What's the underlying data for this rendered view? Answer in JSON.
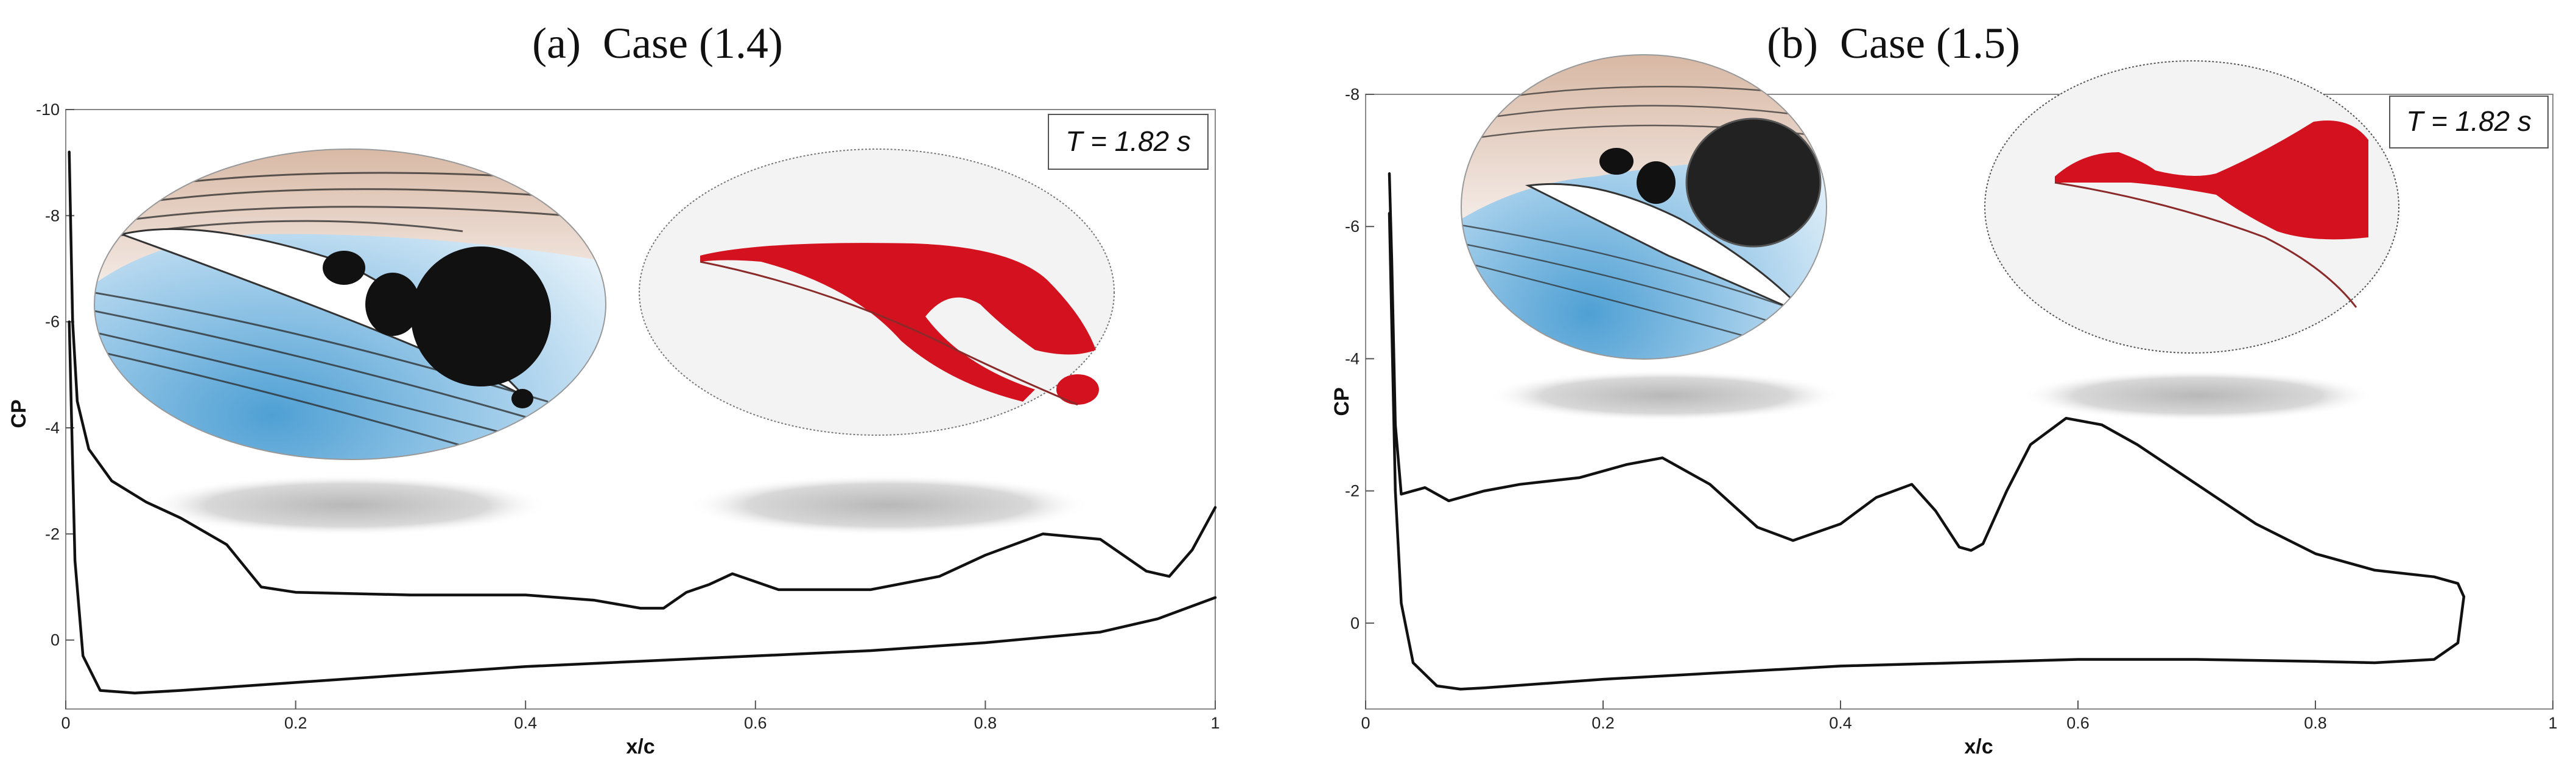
{
  "chart_data": [
    {
      "type": "line",
      "title": "(a)  Case (1.4)",
      "xlabel": "x/c",
      "ylabel": "CP",
      "xlim": [
        0,
        1
      ],
      "ylim": [
        1.3,
        -10
      ],
      "y_inverted": true,
      "xticks": [
        "0",
        "0.2",
        "0.4",
        "0.6",
        "0.8",
        "1"
      ],
      "yticks": [
        "-10",
        "-8",
        "-6",
        "-4",
        "-2",
        "0"
      ],
      "annotation": "T = 1.82 s",
      "series": [
        {
          "x": [
            0.003,
            0.006,
            0.01,
            0.02,
            0.04,
            0.07,
            0.1,
            0.14,
            0.17,
            0.2,
            0.3,
            0.4,
            0.46,
            0.5,
            0.52,
            0.54,
            0.56,
            0.58,
            0.6,
            0.62,
            0.66,
            0.7,
            0.76,
            0.8,
            0.85,
            0.9,
            0.94,
            0.96,
            0.98,
            1.0
          ],
          "y": [
            -9.2,
            -6.0,
            -4.5,
            -3.6,
            -3.0,
            -2.6,
            -2.3,
            -1.8,
            -1.0,
            -0.9,
            -0.85,
            -0.85,
            -0.75,
            -0.6,
            -0.6,
            -0.9,
            -1.05,
            -1.25,
            -1.1,
            -0.95,
            -0.95,
            -0.95,
            -1.2,
            -1.6,
            -2.0,
            -1.9,
            -1.3,
            -1.2,
            -1.7,
            -2.5
          ]
        },
        {
          "x": [
            0.003,
            0.008,
            0.015,
            0.03,
            0.06,
            0.1,
            0.2,
            0.3,
            0.4,
            0.5,
            0.6,
            0.7,
            0.8,
            0.9,
            0.95,
            1.0
          ],
          "y": [
            -6.0,
            -1.5,
            0.3,
            0.95,
            1.0,
            0.95,
            0.8,
            0.65,
            0.5,
            0.4,
            0.3,
            0.2,
            0.05,
            -0.15,
            -0.4,
            -0.8
          ]
        }
      ]
    },
    {
      "type": "line",
      "title": "(b)  Case (1.5)",
      "xlabel": "x/c",
      "ylabel": "CP",
      "xlim": [
        0,
        1
      ],
      "ylim": [
        1.3,
        -8
      ],
      "y_inverted": true,
      "xticks": [
        "0",
        "0.2",
        "0.4",
        "0.6",
        "0.8",
        "1"
      ],
      "yticks": [
        "-8",
        "-6",
        "-4",
        "-2",
        "0"
      ],
      "annotation": "T = 1.82 s",
      "series": [
        {
          "x": [
            0.02,
            0.022,
            0.025,
            0.03,
            0.04,
            0.05,
            0.07,
            0.1,
            0.13,
            0.18,
            0.22,
            0.25,
            0.29,
            0.33,
            0.36,
            0.4,
            0.43,
            0.46,
            0.48,
            0.5,
            0.51,
            0.52,
            0.54,
            0.56,
            0.59,
            0.62,
            0.65,
            0.7,
            0.75,
            0.8,
            0.85,
            0.9,
            0.92,
            0.925
          ],
          "y": [
            -6.8,
            -5.5,
            -3.0,
            -1.95,
            -2.0,
            -2.05,
            -1.85,
            -2.0,
            -2.1,
            -2.2,
            -2.4,
            -2.5,
            -2.1,
            -1.45,
            -1.25,
            -1.5,
            -1.9,
            -2.1,
            -1.7,
            -1.15,
            -1.1,
            -1.2,
            -2.0,
            -2.7,
            -3.1,
            -3.0,
            -2.7,
            -2.1,
            -1.5,
            -1.05,
            -0.8,
            -0.7,
            -0.6,
            -0.4
          ]
        },
        {
          "x": [
            0.02,
            0.025,
            0.03,
            0.04,
            0.06,
            0.08,
            0.1,
            0.2,
            0.3,
            0.4,
            0.5,
            0.6,
            0.7,
            0.8,
            0.85,
            0.9,
            0.92,
            0.925
          ],
          "y": [
            -6.2,
            -2.0,
            -0.3,
            0.6,
            0.95,
            1.0,
            0.98,
            0.85,
            0.75,
            0.65,
            0.6,
            0.55,
            0.55,
            0.58,
            0.6,
            0.55,
            0.3,
            -0.4
          ]
        }
      ]
    }
  ]
}
